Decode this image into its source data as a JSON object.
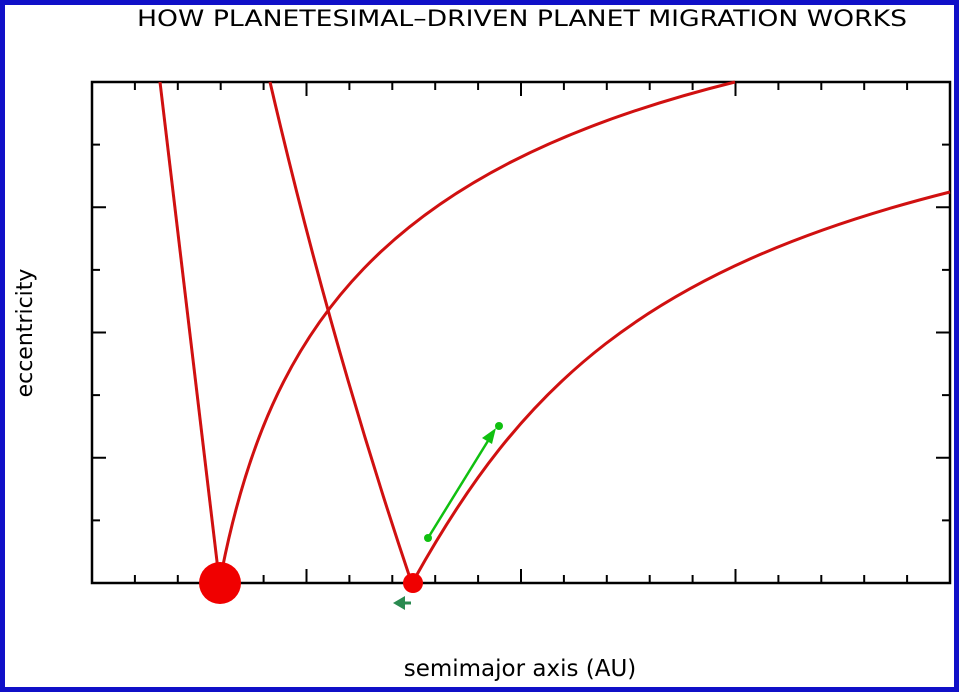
{
  "header": {
    "title": "HOW PLANETESIMAL–DRIVEN PLANET MIGRATION WORKS"
  },
  "axes": {
    "x_label": "semimajor axis (AU)",
    "y_label": "eccentricity"
  }
}
